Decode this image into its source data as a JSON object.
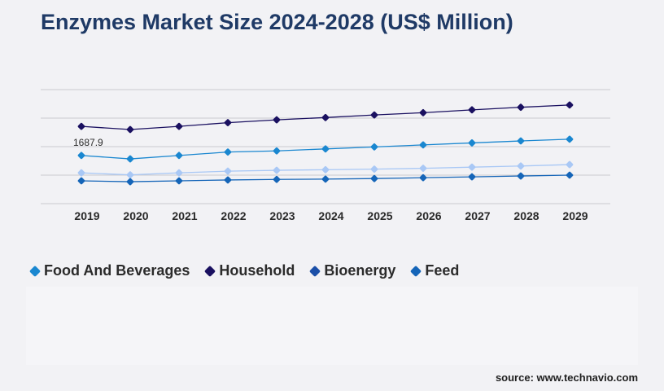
{
  "title": "Enzymes Market Size 2024-2028 (US$ Million)",
  "source": "source: www.technavio.com",
  "chart_data": {
    "type": "line",
    "title": "Enzymes Market Size 2024-2028 (US$ Million)",
    "xlabel": "",
    "ylabel": "",
    "x": [
      "2019",
      "2020",
      "2021",
      "2022",
      "2023",
      "2024",
      "2025",
      "2026",
      "2027",
      "2028",
      "2029"
    ],
    "ylim": [
      0,
      4000
    ],
    "grid": true,
    "legend_position": "bottom-left",
    "annotations": [
      {
        "series": "Food And Beverages",
        "x": "2019",
        "label": "1687.9"
      }
    ],
    "series": [
      {
        "name": "Household",
        "color": "#1a1060",
        "values": [
          2710,
          2600,
          2710,
          2840,
          2940,
          3020,
          3110,
          3190,
          3290,
          3380,
          3460
        ]
      },
      {
        "name": "Food And Beverages",
        "color": "#1a87d0",
        "values": [
          1690,
          1570,
          1690,
          1810,
          1850,
          1920,
          1990,
          2060,
          2130,
          2200,
          2260
        ]
      },
      {
        "name": "Bioenergy",
        "color": "#a9c8f5",
        "values": [
          1080,
          1010,
          1080,
          1140,
          1170,
          1190,
          1210,
          1240,
          1280,
          1320,
          1370
        ]
      },
      {
        "name": "Feed",
        "color": "#1565b8",
        "values": [
          800,
          770,
          800,
          830,
          850,
          860,
          880,
          910,
          940,
          970,
          1000
        ]
      }
    ]
  },
  "legend": [
    {
      "label": "Food And Beverages",
      "color": "#1a87d0"
    },
    {
      "label": "Household",
      "color": "#1a1060"
    },
    {
      "label": "Bioenergy",
      "color": "#1b4fa8"
    },
    {
      "label": "Feed",
      "color": "#1565b8"
    }
  ]
}
